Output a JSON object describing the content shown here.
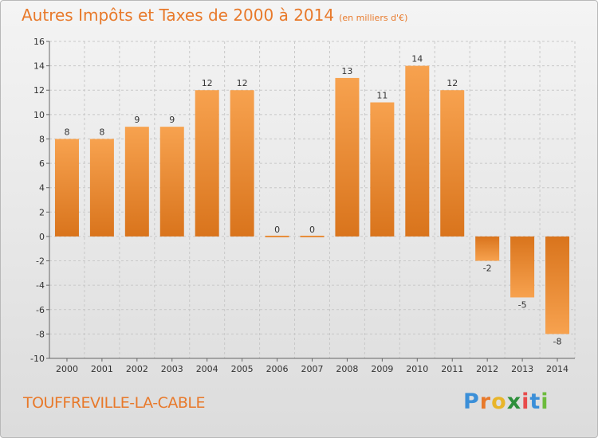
{
  "header": {
    "title": "Autres Impôts et Taxes de 2000 à 2014",
    "unit": "(en milliers d'€)"
  },
  "footer": {
    "commune": "TOUFFREVILLE-LA-CABLE",
    "logo": {
      "p": "P",
      "r": "r",
      "o": "o",
      "x": "x",
      "i1": "i",
      "t": "t",
      "i2": "i"
    }
  },
  "colors": {
    "bar_light": "#f7a24f",
    "bar_dark": "#d9741c",
    "title": "#e8792a"
  },
  "chart_data": {
    "type": "bar",
    "title": "Autres Impôts et Taxes de 2000 à 2014",
    "xlabel": "",
    "ylabel": "",
    "categories": [
      "2000",
      "2001",
      "2002",
      "2003",
      "2004",
      "2005",
      "2006",
      "2007",
      "2008",
      "2009",
      "2010",
      "2011",
      "2012",
      "2013",
      "2014"
    ],
    "values": [
      8,
      8,
      9,
      9,
      12,
      12,
      0,
      0,
      13,
      11,
      14,
      12,
      -2,
      -5,
      -8
    ],
    "data_labels": [
      "8",
      "8",
      "9",
      "9",
      "12",
      "12",
      "0",
      "0",
      "13",
      "11",
      "14",
      "12",
      "-2",
      "-5",
      "-8"
    ],
    "ylim": [
      -10,
      16
    ],
    "yticks": [
      -10,
      -8,
      -6,
      -4,
      -2,
      0,
      2,
      4,
      6,
      8,
      10,
      12,
      14,
      16
    ],
    "ytick_labels": [
      "-10",
      "-8",
      "-6",
      "-4",
      "-2",
      "0",
      "2",
      "4",
      "6",
      "8",
      "10",
      "12",
      "14",
      "16"
    ],
    "grid": true,
    "legend": "none"
  }
}
